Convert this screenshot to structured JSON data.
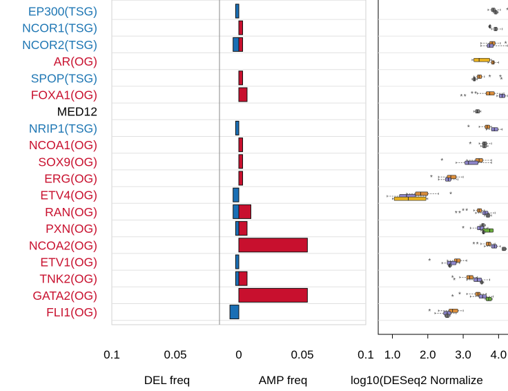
{
  "chart_data": [
    {
      "type": "bar",
      "orientation": "horizontal",
      "categories": [
        {
          "gene": "EP300",
          "role": "TSG"
        },
        {
          "gene": "NCOR1",
          "role": "TSG"
        },
        {
          "gene": "NCOR2",
          "role": "TSG"
        },
        {
          "gene": "AR",
          "role": "OG"
        },
        {
          "gene": "SPOP",
          "role": "TSG"
        },
        {
          "gene": "FOXA1",
          "role": "OG"
        },
        {
          "gene": "MED12",
          "role": ""
        },
        {
          "gene": "NRIP1",
          "role": "TSG"
        },
        {
          "gene": "NCOA1",
          "role": "OG"
        },
        {
          "gene": "SOX9",
          "role": "OG"
        },
        {
          "gene": "ERG",
          "role": "OG"
        },
        {
          "gene": "ETV4",
          "role": "OG"
        },
        {
          "gene": "RAN",
          "role": "OG"
        },
        {
          "gene": "PXN",
          "role": "OG"
        },
        {
          "gene": "NCOA2",
          "role": "OG"
        },
        {
          "gene": "ETV1",
          "role": "OG"
        },
        {
          "gene": "TNK2",
          "role": "OG"
        },
        {
          "gene": "GATA2",
          "role": "OG"
        },
        {
          "gene": "FLI1",
          "role": "OG"
        }
      ],
      "series": [
        {
          "values": [
            0.0025,
            0,
            0.0045,
            0,
            0,
            0,
            0,
            0.0025,
            0,
            0,
            0,
            0.0045,
            0.0045,
            0.0025,
            0,
            0.0025,
            0.0025,
            0,
            0.007
          ]
        },
        {
          "values": [
            0,
            0.003,
            0.003,
            0,
            0.003,
            0.0065,
            0,
            0,
            0.003,
            0.003,
            0.003,
            0,
            0.0095,
            0.0065,
            0.054,
            0,
            0.0065,
            0.054,
            0
          ]
        }
      ],
      "xlim": [
        -0.1,
        0.1
      ],
      "xticks": [
        "0.1",
        "0.05",
        "0",
        "0.05",
        "0.1"
      ],
      "xtick_values": [
        -0.1,
        -0.05,
        0,
        0.05,
        0.1
      ],
      "xlabel_left": "DEL freq",
      "xlabel_right": "AMP freq",
      "grid": "horizontal",
      "colors": {
        "tsg_label": "#1f77b4",
        "og_label": "#c8102e",
        "plain_label": "#000000",
        "del_bar": "#1a6fb5",
        "amp_bar": "#c8102e"
      }
    },
    {
      "type": "box",
      "orientation": "horizontal",
      "xlabel": "log10(DESeq2 Normalize",
      "xticks": [
        "1.0",
        "2.0",
        "3.0",
        "4.0"
      ],
      "xtick_values": [
        1,
        2,
        3,
        4
      ],
      "xlim": [
        0.6,
        4.5
      ],
      "colors": {
        "orange": "#d98c3a",
        "purple": "#8c84c8",
        "yellow": "#e6b020",
        "green": "#6aae3c",
        "grey": "#7f7f7f"
      },
      "boxes": [
        {
          "row": 0,
          "offset": -0.18,
          "color": "grey",
          "q1": 3.8,
          "median": 3.85,
          "q3": 3.9,
          "wlo": 3.7,
          "whi": 4.05,
          "outliers": [
            4.25
          ]
        },
        {
          "row": 0,
          "offset": 0.18,
          "color": "grey",
          "q1": 3.88,
          "median": 3.92,
          "q3": 3.96,
          "wlo": 3.85,
          "whi": 3.99,
          "outliers": []
        },
        {
          "row": 1,
          "offset": -0.18,
          "color": "grey",
          "q1": 3.74,
          "median": 3.75,
          "q3": 3.76,
          "wlo": 3.72,
          "whi": 3.78,
          "outliers": []
        },
        {
          "row": 1,
          "offset": 0.18,
          "color": "grey",
          "q1": 3.87,
          "median": 3.92,
          "q3": 3.96,
          "wlo": 3.8,
          "whi": 4.1,
          "outliers": [
            4.3
          ]
        },
        {
          "row": 2,
          "offset": -0.18,
          "color": "orange",
          "q1": 3.75,
          "median": 3.82,
          "q3": 3.9,
          "wlo": 3.5,
          "whi": 4.05,
          "outliers": [
            4.2
          ]
        },
        {
          "row": 2,
          "offset": 0.18,
          "color": "purple",
          "q1": 3.68,
          "median": 3.75,
          "q3": 3.85,
          "wlo": 3.5,
          "whi": 4.25,
          "outliers": [
            4.45
          ]
        },
        {
          "row": 3,
          "offset": -0.18,
          "color": "yellow",
          "q1": 3.3,
          "median": 3.45,
          "q3": 3.75,
          "wlo": 3.25,
          "whi": 3.8,
          "outliers": []
        },
        {
          "row": 3,
          "offset": 0.18,
          "color": "orange",
          "q1": 3.8,
          "median": 3.85,
          "q3": 3.88,
          "wlo": 3.7,
          "whi": 4.0,
          "outliers": []
        },
        {
          "row": 4,
          "offset": -0.18,
          "color": "orange",
          "q1": 3.4,
          "median": 3.45,
          "q3": 3.52,
          "wlo": 3.3,
          "whi": 3.6,
          "outliers": [
            3.75,
            4.05
          ]
        },
        {
          "row": 4,
          "offset": 0.18,
          "color": "grey",
          "q1": 3.28,
          "median": 3.32,
          "q3": 3.35,
          "wlo": 3.25,
          "whi": 3.4,
          "outliers": [
            4.08
          ]
        },
        {
          "row": 5,
          "offset": -0.18,
          "color": "orange",
          "q1": 3.65,
          "median": 3.75,
          "q3": 3.88,
          "wlo": 3.4,
          "whi": 4.15,
          "outliers": [
            3.25,
            3.35
          ]
        },
        {
          "row": 5,
          "offset": 0.18,
          "color": "purple",
          "q1": 4.02,
          "median": 4.1,
          "q3": 4.18,
          "wlo": 3.95,
          "whi": 4.25,
          "outliers": [
            2.95,
            3.05
          ]
        },
        {
          "row": 6,
          "offset": 0,
          "color": "grey",
          "q1": 3.35,
          "median": 3.4,
          "q3": 3.46,
          "wlo": 3.3,
          "whi": 3.5,
          "outliers": []
        },
        {
          "row": 7,
          "offset": -0.18,
          "color": "orange",
          "q1": 3.62,
          "median": 3.68,
          "q3": 3.75,
          "wlo": 3.45,
          "whi": 3.8,
          "outliers": [
            3.15
          ]
        },
        {
          "row": 7,
          "offset": 0.18,
          "color": "purple",
          "q1": 3.8,
          "median": 3.88,
          "q3": 3.98,
          "wlo": 3.65,
          "whi": 4.1,
          "outliers": []
        },
        {
          "row": 8,
          "offset": -0.18,
          "color": "grey",
          "q1": 3.55,
          "median": 3.6,
          "q3": 3.66,
          "wlo": 3.45,
          "whi": 3.8,
          "outliers": [
            3.2
          ]
        },
        {
          "row": 8,
          "offset": 0.18,
          "color": "grey",
          "q1": 3.55,
          "median": 3.6,
          "q3": 3.65,
          "wlo": 3.5,
          "whi": 3.7,
          "outliers": []
        },
        {
          "row": 9,
          "offset": -0.18,
          "color": "orange",
          "q1": 3.35,
          "median": 3.45,
          "q3": 3.55,
          "wlo": 3.1,
          "whi": 3.8,
          "outliers": [
            2.4
          ]
        },
        {
          "row": 9,
          "offset": 0.18,
          "color": "purple",
          "q1": 3.05,
          "median": 3.15,
          "q3": 3.42,
          "wlo": 2.8,
          "whi": 3.8,
          "outliers": []
        },
        {
          "row": 10,
          "offset": -0.18,
          "color": "orange",
          "q1": 2.55,
          "median": 2.65,
          "q3": 2.8,
          "wlo": 2.3,
          "whi": 3.0,
          "outliers": [
            2.1
          ]
        },
        {
          "row": 10,
          "offset": 0.18,
          "color": "purple",
          "q1": 2.5,
          "median": 2.58,
          "q3": 2.65,
          "wlo": 2.3,
          "whi": 2.85,
          "outliers": []
        },
        {
          "row": 11,
          "offset": -0.18,
          "color": "orange",
          "q1": 1.65,
          "median": 1.8,
          "q3": 2.0,
          "wlo": 1.4,
          "whi": 2.3,
          "outliers": [
            2.65
          ]
        },
        {
          "row": 11,
          "offset": 0.18,
          "color": "purple",
          "q1": 1.2,
          "median": 1.4,
          "q3": 1.65,
          "wlo": 0.85,
          "whi": 1.95,
          "outliers": []
        },
        {
          "row": 11,
          "offset": 0.55,
          "color": "yellow",
          "q1": 1.05,
          "median": 1.45,
          "q3": 1.95,
          "wlo": 1.0,
          "whi": 2.0,
          "outliers": []
        },
        {
          "row": 12,
          "offset": -0.18,
          "color": "orange",
          "q1": 3.4,
          "median": 3.45,
          "q3": 3.52,
          "wlo": 3.3,
          "whi": 3.6,
          "outliers": [
            3.0,
            3.1
          ]
        },
        {
          "row": 12,
          "offset": 0.18,
          "color": "purple",
          "q1": 3.55,
          "median": 3.62,
          "q3": 3.7,
          "wlo": 3.35,
          "whi": 3.9,
          "outliers": [
            2.8,
            2.9
          ]
        },
        {
          "row": 12,
          "offset": 0.55,
          "color": "grey",
          "q1": 3.65,
          "median": 3.7,
          "q3": 3.75,
          "wlo": 3.6,
          "whi": 3.8,
          "outliers": []
        },
        {
          "row": 13,
          "offset": -0.45,
          "color": "grey",
          "q1": 3.52,
          "median": 3.55,
          "q3": 3.6,
          "wlo": 3.48,
          "whi": 3.63,
          "outliers": []
        },
        {
          "row": 13,
          "offset": -0.05,
          "color": "purple",
          "q1": 3.4,
          "median": 3.48,
          "q3": 3.58,
          "wlo": 3.2,
          "whi": 3.7,
          "outliers": [
            3.0
          ]
        },
        {
          "row": 13,
          "offset": 0.3,
          "color": "green",
          "q1": 3.55,
          "median": 3.75,
          "q3": 3.85,
          "wlo": 3.5,
          "whi": 3.85,
          "outliers": []
        },
        {
          "row": 13,
          "offset": 0.55,
          "color": "grey",
          "q1": 3.55,
          "median": 3.57,
          "q3": 3.6,
          "wlo": 3.54,
          "whi": 3.62,
          "outliers": []
        },
        {
          "row": 14,
          "offset": -0.18,
          "color": "orange",
          "q1": 3.65,
          "median": 3.72,
          "q3": 3.78,
          "wlo": 3.5,
          "whi": 3.9,
          "outliers": [
            3.3,
            3.4
          ]
        },
        {
          "row": 14,
          "offset": 0.18,
          "color": "purple",
          "q1": 3.8,
          "median": 3.88,
          "q3": 3.95,
          "wlo": 3.6,
          "whi": 4.05,
          "outliers": []
        },
        {
          "row": 14,
          "offset": 0.55,
          "color": "grey",
          "q1": 4.1,
          "median": 4.15,
          "q3": 4.2,
          "wlo": 4.1,
          "whi": 4.22,
          "outliers": []
        },
        {
          "row": 15,
          "offset": -0.18,
          "color": "orange",
          "q1": 2.75,
          "median": 2.82,
          "q3": 2.92,
          "wlo": 2.55,
          "whi": 3.1,
          "outliers": [
            2.05
          ]
        },
        {
          "row": 15,
          "offset": 0.18,
          "color": "purple",
          "q1": 2.55,
          "median": 2.65,
          "q3": 2.8,
          "wlo": 2.4,
          "whi": 2.9,
          "outliers": []
        },
        {
          "row": 15,
          "offset": 0.55,
          "color": "grey",
          "q1": 2.6,
          "median": 2.62,
          "q3": 2.65,
          "wlo": 2.58,
          "whi": 2.67,
          "outliers": []
        },
        {
          "row": 16,
          "offset": -0.18,
          "color": "orange",
          "q1": 3.1,
          "median": 3.18,
          "q3": 3.28,
          "wlo": 2.9,
          "whi": 3.4,
          "outliers": [
            2.7
          ]
        },
        {
          "row": 16,
          "offset": 0.18,
          "color": "purple",
          "q1": 3.3,
          "median": 3.4,
          "q3": 3.52,
          "wlo": 3.1,
          "whi": 3.75,
          "outliers": [
            2.75
          ]
        },
        {
          "row": 16,
          "offset": 0.55,
          "color": "grey",
          "q1": 3.5,
          "median": 3.53,
          "q3": 3.55,
          "wlo": 3.48,
          "whi": 3.58,
          "outliers": []
        },
        {
          "row": 17,
          "offset": -0.18,
          "color": "orange",
          "q1": 3.35,
          "median": 3.42,
          "q3": 3.48,
          "wlo": 3.1,
          "whi": 3.65,
          "outliers": [
            2.9
          ]
        },
        {
          "row": 17,
          "offset": 0.18,
          "color": "purple",
          "q1": 3.45,
          "median": 3.55,
          "q3": 3.65,
          "wlo": 3.2,
          "whi": 3.85,
          "outliers": [
            2.7
          ]
        },
        {
          "row": 17,
          "offset": 0.55,
          "color": "green",
          "q1": 3.65,
          "median": 3.72,
          "q3": 3.8,
          "wlo": 3.62,
          "whi": 3.82,
          "outliers": []
        },
        {
          "row": 18,
          "offset": -0.18,
          "color": "orange",
          "q1": 2.6,
          "median": 2.7,
          "q3": 2.85,
          "wlo": 2.3,
          "whi": 3.0,
          "outliers": [
            2.05
          ]
        },
        {
          "row": 18,
          "offset": 0.18,
          "color": "purple",
          "q1": 2.45,
          "median": 2.55,
          "q3": 2.65,
          "wlo": 2.2,
          "whi": 2.8,
          "outliers": []
        },
        {
          "row": 18,
          "offset": 0.55,
          "color": "grey",
          "q1": 2.5,
          "median": 2.55,
          "q3": 2.6,
          "wlo": 2.48,
          "whi": 2.63,
          "outliers": []
        }
      ]
    }
  ]
}
